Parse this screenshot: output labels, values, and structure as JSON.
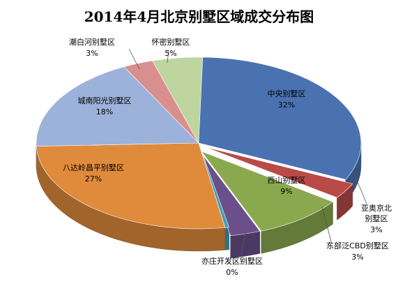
{
  "chart_data": {
    "type": "pie",
    "title": "2014年4月北京别墅区域成交分布图",
    "unit": "%",
    "slices": [
      {
        "name": "中央别墅区",
        "value": 32,
        "label": "32%",
        "color": "#4a72b0"
      },
      {
        "name": "亚奥京北别墅区",
        "value": 3,
        "label": "3%",
        "color": "#b94a47"
      },
      {
        "name": "西山别墅区",
        "value": 9,
        "label": "9%",
        "color": "#8aa94f"
      },
      {
        "name": "东部泛CBD别墅区",
        "value": 3,
        "label": "3%",
        "color": "#6a4f8a"
      },
      {
        "name": "亦庄开发区别墅区",
        "value": 0,
        "label": "0%",
        "color": "#3fa0b8"
      },
      {
        "name": "八达岭昌平别墅区",
        "value": 27,
        "label": "27%",
        "color": "#e08b3c"
      },
      {
        "name": "城南阳光别墅区",
        "value": 18,
        "label": "18%",
        "color": "#9db2da"
      },
      {
        "name": "潮白河别墅区",
        "value": 3,
        "label": "3%",
        "color": "#d88f8e"
      },
      {
        "name": "怀密别墅区",
        "value": 5,
        "label": "5%",
        "color": "#bfd59f"
      }
    ]
  }
}
